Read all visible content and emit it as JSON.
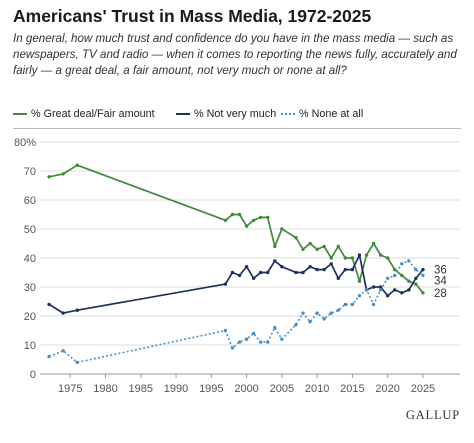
{
  "title": "Americans' Trust in Mass Media, 1972-2025",
  "subtitle": "In general, how much trust and confidence do you have in the mass media — such as newspapers, TV and radio — when it comes to reporting the news fully, accurately and fairly — a great deal, a fair amount, not very much or none at all?",
  "brand": "GALLUP",
  "chart_data": {
    "type": "line",
    "title": "Americans' Trust in Mass Media, 1972-2025",
    "xlabel": "",
    "ylabel": "",
    "xlim": [
      1971,
      2026
    ],
    "ylim": [
      0,
      80
    ],
    "x_ticks": [
      "1975",
      "1980",
      "1985",
      "1990",
      "1995",
      "2000",
      "2005",
      "2010",
      "2015",
      "2020",
      "2025"
    ],
    "y_ticks": [
      "0",
      "10",
      "20",
      "30",
      "40",
      "50",
      "60",
      "70",
      "80%"
    ],
    "grid": "horizontal",
    "legend_position": "top",
    "series": [
      {
        "name": "% Great deal/Fair amount",
        "color": "#3f8a3c",
        "dash": "solid",
        "end_label": "28",
        "points": [
          [
            1972,
            68
          ],
          [
            1974,
            69
          ],
          [
            1976,
            72
          ],
          [
            1997,
            53
          ],
          [
            1998,
            55
          ],
          [
            1999,
            55
          ],
          [
            2000,
            51
          ],
          [
            2001,
            53
          ],
          [
            2002,
            54
          ],
          [
            2003,
            54
          ],
          [
            2004,
            44
          ],
          [
            2005,
            50
          ],
          [
            2007,
            47
          ],
          [
            2008,
            43
          ],
          [
            2009,
            45
          ],
          [
            2010,
            43
          ],
          [
            2011,
            44
          ],
          [
            2012,
            40
          ],
          [
            2013,
            44
          ],
          [
            2014,
            40
          ],
          [
            2015,
            40
          ],
          [
            2016,
            32
          ],
          [
            2017,
            41
          ],
          [
            2018,
            45
          ],
          [
            2019,
            41
          ],
          [
            2020,
            40
          ],
          [
            2021,
            36
          ],
          [
            2022,
            34
          ],
          [
            2023,
            32
          ],
          [
            2024,
            31
          ],
          [
            2025,
            28
          ]
        ]
      },
      {
        "name": "% Not very much",
        "color": "#1f2f5f",
        "dash": "solid",
        "end_label": "36",
        "points": [
          [
            1972,
            24
          ],
          [
            1974,
            21
          ],
          [
            1976,
            22
          ],
          [
            1997,
            31
          ],
          [
            1998,
            35
          ],
          [
            1999,
            34
          ],
          [
            2000,
            37
          ],
          [
            2001,
            33
          ],
          [
            2002,
            35
          ],
          [
            2003,
            35
          ],
          [
            2004,
            39
          ],
          [
            2005,
            37
          ],
          [
            2007,
            35
          ],
          [
            2008,
            35
          ],
          [
            2009,
            37
          ],
          [
            2010,
            36
          ],
          [
            2011,
            36
          ],
          [
            2012,
            38
          ],
          [
            2013,
            33
          ],
          [
            2014,
            36
          ],
          [
            2015,
            36
          ],
          [
            2016,
            41
          ],
          [
            2017,
            29
          ],
          [
            2018,
            30
          ],
          [
            2019,
            30
          ],
          [
            2020,
            27
          ],
          [
            2021,
            29
          ],
          [
            2022,
            28
          ],
          [
            2023,
            29
          ],
          [
            2024,
            33
          ],
          [
            2025,
            36
          ]
        ]
      },
      {
        "name": "% None at all",
        "color": "#4a90c8",
        "dash": "dotted",
        "end_label": "34",
        "points": [
          [
            1972,
            6
          ],
          [
            1974,
            8
          ],
          [
            1976,
            4
          ],
          [
            1997,
            15
          ],
          [
            1998,
            9
          ],
          [
            1999,
            11
          ],
          [
            2000,
            12
          ],
          [
            2001,
            14
          ],
          [
            2002,
            11
          ],
          [
            2003,
            11
          ],
          [
            2004,
            16
          ],
          [
            2005,
            12
          ],
          [
            2007,
            17
          ],
          [
            2008,
            21
          ],
          [
            2009,
            18
          ],
          [
            2010,
            21
          ],
          [
            2011,
            19
          ],
          [
            2012,
            21
          ],
          [
            2013,
            22
          ],
          [
            2014,
            24
          ],
          [
            2015,
            24
          ],
          [
            2016,
            27
          ],
          [
            2017,
            29
          ],
          [
            2018,
            24
          ],
          [
            2019,
            29
          ],
          [
            2020,
            33
          ],
          [
            2021,
            34
          ],
          [
            2022,
            38
          ],
          [
            2023,
            39
          ],
          [
            2024,
            36
          ],
          [
            2025,
            34
          ]
        ]
      }
    ]
  }
}
